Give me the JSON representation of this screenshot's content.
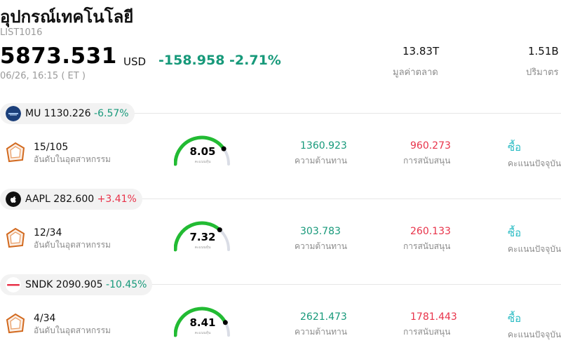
{
  "header": {
    "title": "อุปกรณ์เทคโนโลยี",
    "code": "LIST1016",
    "price": "5873.531",
    "currency": "USD",
    "change": "-158.958 -2.71%",
    "timestamp": "06/26, 16:15  ( ET )",
    "stats": [
      {
        "value": "13.83T",
        "label": "มูลค่าตลาด"
      },
      {
        "value": "1.51B",
        "label": "ปริมาตร"
      }
    ]
  },
  "stocks": [
    {
      "symbol": "MU",
      "price": "1130.226",
      "change": "-6.57%",
      "direction": "down",
      "rank": "15/105",
      "rank_label": "อันดับในอุตสาหกรรม",
      "score": 8.05,
      "score_label": "คะแนนหุ้น",
      "resistance": "1360.923",
      "resistance_label": "ความต้านทาน",
      "support": "960.273",
      "support_label": "การสนับสนุน",
      "rating": "ซื้อ",
      "rating_label": "คะแนนปัจจุบัน",
      "logo_icon": "micron-logo-icon",
      "logo_color": "#1b3f7a"
    },
    {
      "symbol": "AAPL",
      "price": "282.600",
      "change": "+3.41%",
      "direction": "up",
      "rank": "12/34",
      "rank_label": "อันดับในอุตสาหกรรม",
      "score": 7.32,
      "score_label": "คะแนนหุ้น",
      "resistance": "303.783",
      "resistance_label": "ความต้านทาน",
      "support": "260.133",
      "support_label": "การสนับสนุน",
      "rating": "ซื้อ",
      "rating_label": "คะแนนปัจจุบัน",
      "logo_icon": "apple-logo-icon",
      "logo_color": "#111111"
    },
    {
      "symbol": "SNDK",
      "price": "2090.905",
      "change": "-10.45%",
      "direction": "down",
      "rank": "4/34",
      "rank_label": "อันดับในอุตสาหกรรม",
      "score": 8.41,
      "score_label": "คะแนนหุ้น",
      "resistance": "2621.473",
      "resistance_label": "ความต้านทาน",
      "support": "1781.443",
      "support_label": "การสนับสนุน",
      "rating": "ซื้อ",
      "rating_label": "คะแนนปัจจุบัน",
      "logo_icon": "sandisk-logo-icon",
      "logo_color": "#e8334a"
    }
  ],
  "colors": {
    "up": "#e8334a",
    "down": "#17997a",
    "buy": "#2bbcc4",
    "gauge_green": "#22bb33",
    "gauge_bg": "#dadde6"
  }
}
